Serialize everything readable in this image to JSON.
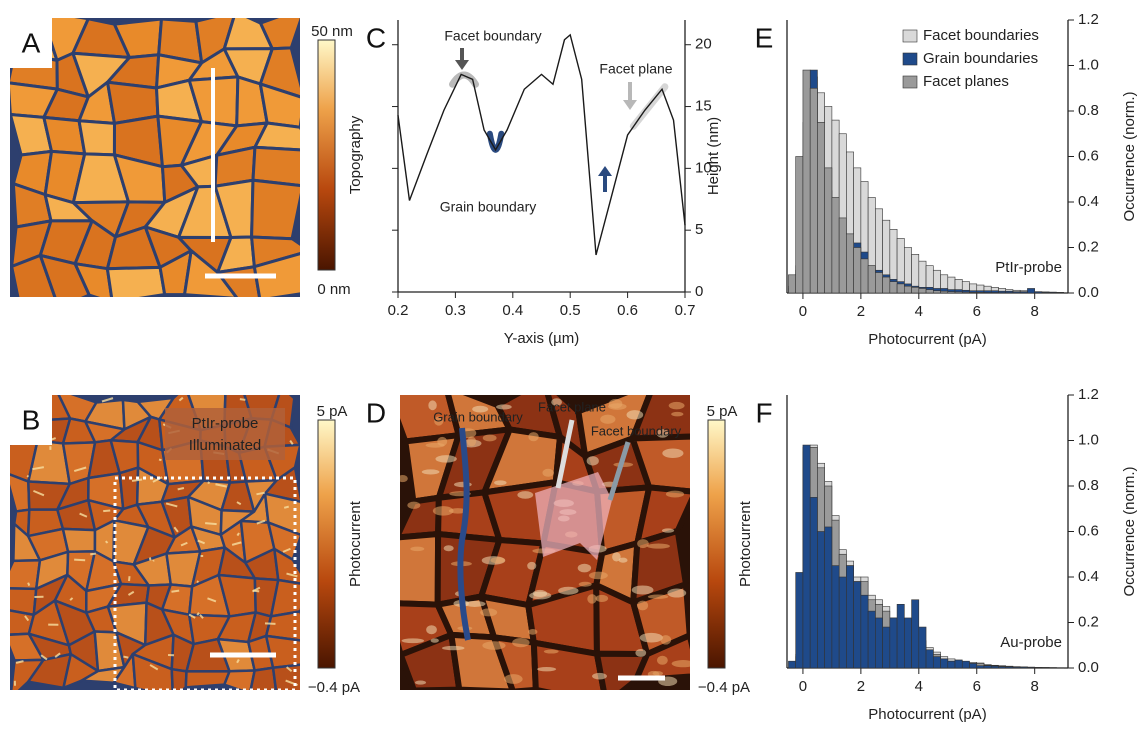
{
  "panels": {
    "a": {
      "label": "A",
      "colorbar": {
        "top": "50 nm",
        "bottom": "0 nm",
        "title": "Topography"
      }
    },
    "b": {
      "label": "B",
      "tags": [
        "PtIr-probe",
        "Illuminated"
      ],
      "colorbar": {
        "top": "5 pA",
        "bottom": "−0.4 pA",
        "title": "Photocurrent"
      }
    },
    "c": {
      "label": "C"
    },
    "d": {
      "label": "D",
      "annotations": [
        "Grain boundary",
        "Facet plane",
        "Facet boundary"
      ],
      "colorbar": {
        "top": "5 pA",
        "bottom": "−0.4 pA",
        "title": "Photocurrent"
      }
    },
    "e": {
      "label": "E"
    },
    "f": {
      "label": "F"
    }
  },
  "chart_data": [
    {
      "type": "line",
      "x": [
        0.2,
        0.22,
        0.25,
        0.28,
        0.31,
        0.33,
        0.35,
        0.37,
        0.39,
        0.42,
        0.45,
        0.47,
        0.49,
        0.5,
        0.52,
        0.545,
        0.57,
        0.6,
        0.63,
        0.66,
        0.68,
        0.7
      ],
      "series": [
        {
          "color": "#1a1a1a",
          "values": [
            14.3,
            7.4,
            11.1,
            14.7,
            17.6,
            17.2,
            13.1,
            11.5,
            13.1,
            16.4,
            17.6,
            16.8,
            20.4,
            20.8,
            17.2,
            3.0,
            7.4,
            12.7,
            14.7,
            16.4,
            13.9,
            5.4
          ]
        }
      ],
      "xlim": [
        0.2,
        0.7
      ],
      "ylim": [
        0,
        22
      ],
      "xticks": [
        0.2,
        0.3,
        0.4,
        0.5,
        0.6,
        0.7
      ],
      "yticks": [
        0,
        5,
        10,
        15,
        20
      ],
      "xlabel": "Y-axis (µm)",
      "ylabel": "Height (nm)",
      "annotations": [
        {
          "text": "Facet boundary",
          "color": "#555555"
        },
        {
          "text": "Grain boundary",
          "color": "#2a4a7f"
        },
        {
          "text": "Facet plane",
          "color": "#b8b8b8"
        }
      ]
    },
    {
      "type": "histogram",
      "bins": [
        -0.5,
        -0.25,
        0,
        0.25,
        0.5,
        0.75,
        1,
        1.25,
        1.5,
        1.75,
        2,
        2.25,
        2.5,
        2.75,
        3,
        3.25,
        3.5,
        3.75,
        4,
        4.25,
        4.5,
        4.75,
        5,
        5.25,
        5.5,
        5.75,
        6,
        6.25,
        6.5,
        6.75,
        7,
        7.25,
        7.5,
        7.75,
        8,
        8.25,
        8.5,
        8.75,
        9
      ],
      "series": [
        {
          "name": "Facet boundaries",
          "color": "#d9d9d9",
          "values": [
            0.02,
            0.1,
            0.75,
            0.95,
            0.88,
            0.82,
            0.76,
            0.7,
            0.62,
            0.55,
            0.49,
            0.42,
            0.37,
            0.32,
            0.28,
            0.24,
            0.2,
            0.17,
            0.14,
            0.12,
            0.1,
            0.08,
            0.07,
            0.06,
            0.05,
            0.04,
            0.035,
            0.03,
            0.025,
            0.02,
            0.015,
            0.012,
            0.01,
            0.008,
            0.006,
            0.005,
            0.004,
            0.003
          ]
        },
        {
          "name": "Grain boundaries",
          "color": "#1f4a8a",
          "values": [
            0.03,
            0.12,
            0.5,
            0.98,
            0.72,
            0.45,
            0.3,
            0.22,
            0.2,
            0.22,
            0.18,
            0.12,
            0.1,
            0.08,
            0.06,
            0.05,
            0.04,
            0.03,
            0.025,
            0.025,
            0.02,
            0.02,
            0.015,
            0.015,
            0.012,
            0.01,
            0.01,
            0.01,
            0.01,
            0.008,
            0.008,
            0.006,
            0.006,
            0.02,
            0.005,
            0.003,
            0.003,
            0.002
          ]
        },
        {
          "name": "Facet planes",
          "color": "#9a9a9a",
          "values": [
            0.08,
            0.6,
            0.98,
            0.9,
            0.75,
            0.55,
            0.42,
            0.33,
            0.26,
            0.2,
            0.15,
            0.12,
            0.09,
            0.07,
            0.05,
            0.04,
            0.03,
            0.025,
            0.02,
            0.015,
            0.01,
            0.008,
            0.006,
            0.005,
            0.004,
            0.003,
            0.003,
            0.002,
            0.002,
            0.001,
            0.001,
            0.001,
            0.001,
            0,
            0,
            0,
            0,
            0
          ]
        }
      ],
      "xlim": [
        -0.55,
        9.15
      ],
      "ylim": [
        0,
        1.2
      ],
      "xticks": [
        0,
        2,
        4,
        6,
        8
      ],
      "yticks": [
        {
          "value": 0,
          "label": "0.0"
        },
        0.2,
        0.4,
        0.6,
        0.8,
        {
          "value": 1,
          "label": "1.0"
        },
        1.2
      ],
      "xlabel": "Photocurrent (pA)",
      "ylabel": "Occurrence (norm.)",
      "legend": "upper right",
      "annotation": "PtIr-probe"
    },
    {
      "type": "histogram",
      "bins": [
        -0.5,
        -0.25,
        0,
        0.25,
        0.5,
        0.75,
        1,
        1.25,
        1.5,
        1.75,
        2,
        2.25,
        2.5,
        2.75,
        3,
        3.25,
        3.5,
        3.75,
        4,
        4.25,
        4.5,
        4.75,
        5,
        5.25,
        5.5,
        5.75,
        6,
        6.25,
        6.5,
        6.75,
        7,
        7.25,
        7.5,
        7.75,
        8,
        8.25,
        8.5,
        8.75,
        9
      ],
      "series": [
        {
          "color": "#d9d9d9",
          "values": [
            0,
            0.06,
            0.97,
            0.98,
            0.9,
            0.82,
            0.67,
            0.52,
            0.47,
            0.4,
            0.4,
            0.32,
            0.3,
            0.27,
            0.22,
            0.2,
            0.17,
            0.14,
            0.12,
            0.09,
            0.07,
            0.05,
            0.04,
            0.035,
            0.025,
            0.025,
            0.022,
            0.015,
            0.012,
            0.01,
            0.008,
            0.006,
            0.005,
            0.004,
            0.003,
            0.002,
            0.002,
            0.001
          ]
        },
        {
          "color": "#9a9a9a",
          "values": [
            0,
            0.05,
            0.95,
            0.97,
            0.88,
            0.8,
            0.65,
            0.5,
            0.45,
            0.38,
            0.38,
            0.3,
            0.28,
            0.25,
            0.2,
            0.18,
            0.15,
            0.12,
            0.1,
            0.08,
            0.06,
            0.04,
            0.03,
            0.03,
            0.02,
            0.02,
            0.02,
            0.012,
            0.01,
            0.008,
            0.006,
            0.005,
            0.004,
            0.003,
            0.002,
            0.002,
            0.001,
            0.001
          ]
        },
        {
          "color": "#1f4a8a",
          "values": [
            0.03,
            0.42,
            0.98,
            0.75,
            0.6,
            0.62,
            0.45,
            0.4,
            0.45,
            0.38,
            0.32,
            0.25,
            0.22,
            0.18,
            0.22,
            0.28,
            0.22,
            0.3,
            0.18,
            0.08,
            0.05,
            0.04,
            0.03,
            0.035,
            0.03,
            0.02,
            0.01,
            0.01,
            0.008,
            0.006,
            0.005,
            0.004,
            0.004,
            0.003,
            0.002,
            0.002,
            0.001,
            0.001
          ]
        }
      ],
      "xlim": [
        -0.55,
        9.15
      ],
      "ylim": [
        0,
        1.2
      ],
      "xticks": [
        0,
        2,
        4,
        6,
        8
      ],
      "yticks": [
        {
          "value": 0,
          "label": "0.0"
        },
        0.2,
        0.4,
        0.6,
        0.8,
        {
          "value": 1,
          "label": "1.0"
        },
        1.2
      ],
      "xlabel": "Photocurrent (pA)",
      "ylabel": "Occurrence (norm.)",
      "annotation": "Au-probe"
    }
  ]
}
